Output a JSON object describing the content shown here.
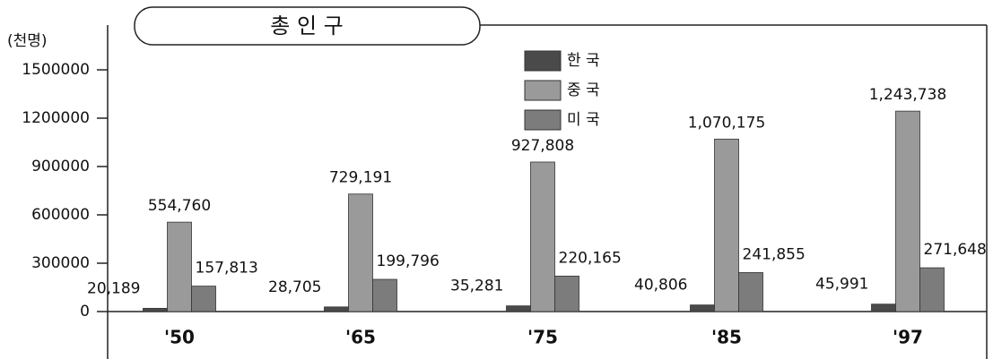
{
  "chart_data": {
    "type": "bar",
    "title": "총 인 구",
    "y_label": "(천명)",
    "categories": [
      "'50",
      "'65",
      "'75",
      "'85",
      "'97"
    ],
    "series": [
      {
        "name": "한 국",
        "color": "#4a4a4a",
        "values": [
          20189,
          28705,
          35281,
          40806,
          45991
        ],
        "value_labels": [
          "20,189",
          "28,705",
          "35,281",
          "40,806",
          "45,991"
        ]
      },
      {
        "name": "중 국",
        "color": "#9a9a9a",
        "values": [
          554760,
          729191,
          927808,
          1070175,
          1243738
        ],
        "value_labels": [
          "554,760",
          "729,191",
          "927,808",
          "1,070,175",
          "1,243,738"
        ]
      },
      {
        "name": "미 국",
        "color": "#7c7c7c",
        "values": [
          157813,
          199796,
          220165,
          241855,
          271648
        ],
        "value_labels": [
          "157,813",
          "199,796",
          "220,165",
          "241,855",
          "271,648"
        ]
      }
    ],
    "ylim": [
      0,
      1500000
    ],
    "yticks": [
      0,
      300000,
      600000,
      900000,
      1200000,
      1500000
    ],
    "grid": false
  }
}
